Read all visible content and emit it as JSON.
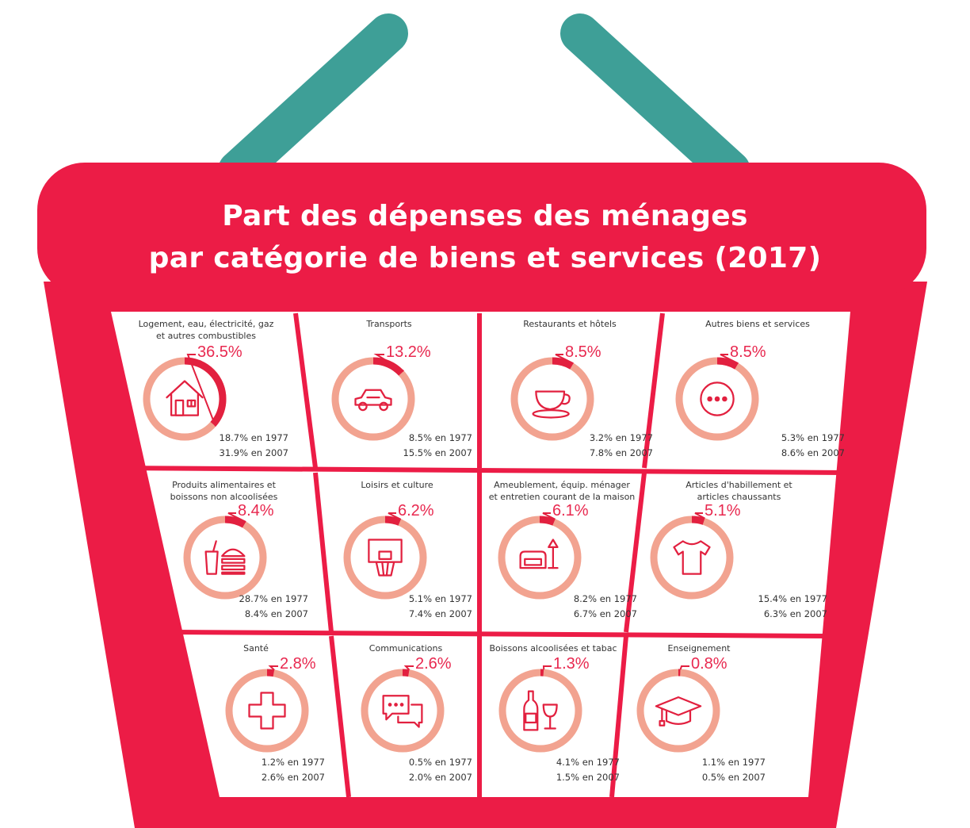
{
  "title": {
    "line1": "Part des dépenses des ménages",
    "line2": "par catégorie de biens et services (2017)"
  },
  "colors": {
    "basket": "#ec1c46",
    "handle": "#3e9f97",
    "ring_light": "#f2a390",
    "ring_dark": "#e2203f",
    "icon": "#e2203f",
    "text": "#333333",
    "percent": "#e8284f"
  },
  "categories": [
    {
      "name": "Logement, eau, électricité, gaz\net autres combustibles",
      "pct_label": "36.5%",
      "pct": 36.5,
      "y1977": "18.7% en 1977",
      "y2007": "31.9% en 2007",
      "icon": "house-icon"
    },
    {
      "name": "Transports",
      "pct_label": "13.2%",
      "pct": 13.2,
      "y1977": "8.5% en 1977",
      "y2007": "15.5% en 2007",
      "icon": "car-icon"
    },
    {
      "name": "Restaurants et hôtels",
      "pct_label": "8.5%",
      "pct": 8.5,
      "y1977": "3.2% en 1977",
      "y2007": "7.8% en 2007",
      "icon": "teacup-icon"
    },
    {
      "name": "Autres biens et services",
      "pct_label": "8.5%",
      "pct": 8.5,
      "y1977": "5.3% en 1977",
      "y2007": "8.6% en 2007",
      "icon": "dots-icon"
    },
    {
      "name": "Produits alimentaires et\nboissons non alcoolisées",
      "pct_label": "8.4%",
      "pct": 8.4,
      "y1977": "28.7% en 1977",
      "y2007": "8.4% en 2007",
      "icon": "burger-drink-icon"
    },
    {
      "name": "Loisirs et culture",
      "pct_label": "6.2%",
      "pct": 6.2,
      "y1977": "5.1% en 1977",
      "y2007": "7.4% en 2007",
      "icon": "basketball-hoop-icon"
    },
    {
      "name": "Ameublement, équip. ménager\net entretien courant de la maison",
      "pct_label": "6.1%",
      "pct": 6.1,
      "y1977": "8.2% en 1977",
      "y2007": "6.7% en 2007",
      "icon": "sofa-lamp-icon"
    },
    {
      "name": "Articles d'habillement et\narticles chaussants",
      "pct_label": "5.1%",
      "pct": 5.1,
      "y1977": "15.4% en 1977",
      "y2007": "6.3% en 2007",
      "icon": "tshirt-icon"
    },
    {
      "name": "Santé",
      "pct_label": "2.8%",
      "pct": 2.8,
      "y1977": "1.2% en 1977",
      "y2007": "2.6% en 2007",
      "icon": "cross-icon"
    },
    {
      "name": "Communications",
      "pct_label": "2.6%",
      "pct": 2.6,
      "y1977": "0.5% en 1977",
      "y2007": "2.0% en 2007",
      "icon": "chat-bubbles-icon"
    },
    {
      "name": "Boissons alcoolisées et tabac",
      "pct_label": "1.3%",
      "pct": 1.3,
      "y1977": "4.1% en 1977",
      "y2007": "1.5% en 2007",
      "icon": "bottle-glass-icon"
    },
    {
      "name": "Enseignement",
      "pct_label": "0.8%",
      "pct": 0.8,
      "y1977": "1.1% en 1977",
      "y2007": "0.5% en 2007",
      "icon": "graduation-cap-icon"
    }
  ]
}
